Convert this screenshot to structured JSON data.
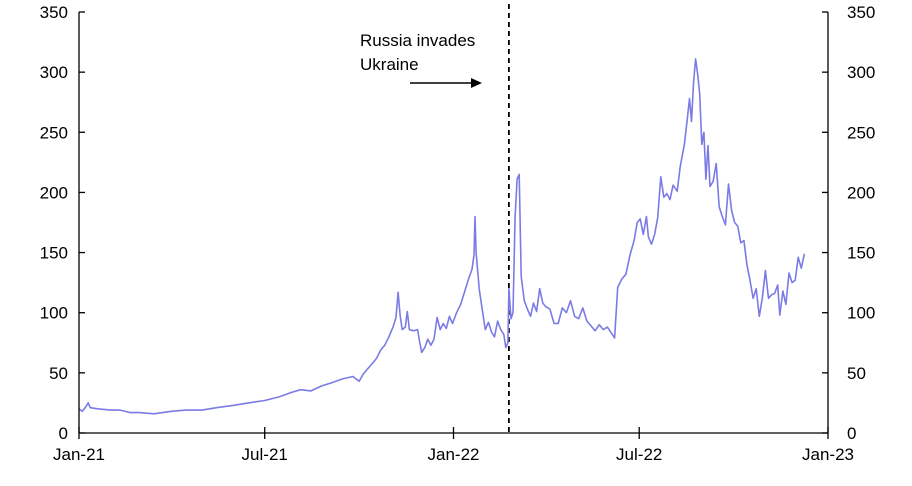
{
  "chart_data": {
    "type": "line",
    "title": "",
    "xlabel": "",
    "ylabel": "",
    "ylim": [
      0,
      350
    ],
    "yticks": [
      0,
      50,
      100,
      150,
      200,
      250,
      300,
      350
    ],
    "xlim": [
      "2021-01-01",
      "2023-01-01"
    ],
    "xticks": [
      {
        "date": "2021-01-01",
        "label": "Jan-21"
      },
      {
        "date": "2021-07-01",
        "label": "Jul-21"
      },
      {
        "date": "2022-01-01",
        "label": "Jan-22"
      },
      {
        "date": "2022-07-01",
        "label": "Jul-22"
      },
      {
        "date": "2023-01-01",
        "label": "Jan-23"
      }
    ],
    "grid": false,
    "legend": "none",
    "dual_axis": true,
    "series_color": "#7b7be6",
    "annotation": {
      "lines": [
        "Russia invades",
        "Ukraine"
      ],
      "event_date": "2022-02-24",
      "arrow": "right"
    },
    "series": [
      {
        "values": [
          [
            "2021-01-01",
            20
          ],
          [
            "2021-01-04",
            18
          ],
          [
            "2021-01-07",
            21
          ],
          [
            "2021-01-10",
            25
          ],
          [
            "2021-01-12",
            21
          ],
          [
            "2021-01-20",
            20
          ],
          [
            "2021-02-01",
            19
          ],
          [
            "2021-02-10",
            19
          ],
          [
            "2021-02-20",
            17
          ],
          [
            "2021-03-01",
            17
          ],
          [
            "2021-03-15",
            16
          ],
          [
            "2021-04-01",
            18
          ],
          [
            "2021-04-15",
            19
          ],
          [
            "2021-05-01",
            19
          ],
          [
            "2021-05-15",
            21
          ],
          [
            "2021-06-01",
            23
          ],
          [
            "2021-06-15",
            25
          ],
          [
            "2021-07-01",
            27
          ],
          [
            "2021-07-15",
            30
          ],
          [
            "2021-07-28",
            34
          ],
          [
            "2021-08-05",
            36
          ],
          [
            "2021-08-15",
            35
          ],
          [
            "2021-08-25",
            39
          ],
          [
            "2021-09-05",
            42
          ],
          [
            "2021-09-15",
            45
          ],
          [
            "2021-09-25",
            47
          ],
          [
            "2021-10-01",
            43
          ],
          [
            "2021-10-05",
            49
          ],
          [
            "2021-10-12",
            56
          ],
          [
            "2021-10-18",
            62
          ],
          [
            "2021-10-22",
            69
          ],
          [
            "2021-10-26",
            73
          ],
          [
            "2021-10-30",
            80
          ],
          [
            "2021-11-03",
            88
          ],
          [
            "2021-11-06",
            96
          ],
          [
            "2021-11-08",
            117
          ],
          [
            "2021-11-10",
            98
          ],
          [
            "2021-11-12",
            86
          ],
          [
            "2021-11-15",
            88
          ],
          [
            "2021-11-17",
            101
          ],
          [
            "2021-11-19",
            86
          ],
          [
            "2021-11-23",
            85
          ],
          [
            "2021-11-27",
            86
          ],
          [
            "2021-11-29",
            76
          ],
          [
            "2021-12-01",
            67
          ],
          [
            "2021-12-04",
            71
          ],
          [
            "2021-12-07",
            78
          ],
          [
            "2021-12-10",
            73
          ],
          [
            "2021-12-13",
            78
          ],
          [
            "2021-12-16",
            96
          ],
          [
            "2021-12-19",
            86
          ],
          [
            "2021-12-22",
            91
          ],
          [
            "2021-12-25",
            87
          ],
          [
            "2021-12-28",
            97
          ],
          [
            "2021-12-31",
            91
          ],
          [
            "2022-01-04",
            100
          ],
          [
            "2022-01-08",
            107
          ],
          [
            "2022-01-12",
            118
          ],
          [
            "2022-01-16",
            129
          ],
          [
            "2022-01-19",
            136
          ],
          [
            "2022-01-21",
            148
          ],
          [
            "2022-01-22",
            180
          ],
          [
            "2022-01-23",
            150
          ],
          [
            "2022-01-26",
            120
          ],
          [
            "2022-01-29",
            103
          ],
          [
            "2022-02-01",
            86
          ],
          [
            "2022-02-04",
            92
          ],
          [
            "2022-02-07",
            84
          ],
          [
            "2022-02-10",
            80
          ],
          [
            "2022-02-13",
            93
          ],
          [
            "2022-02-16",
            86
          ],
          [
            "2022-02-19",
            82
          ],
          [
            "2022-02-21",
            71
          ],
          [
            "2022-02-23",
            75
          ],
          [
            "2022-02-24",
            120
          ],
          [
            "2022-02-26",
            95
          ],
          [
            "2022-02-28",
            100
          ],
          [
            "2022-03-02",
            180
          ],
          [
            "2022-03-04",
            211
          ],
          [
            "2022-03-06",
            215
          ],
          [
            "2022-03-08",
            130
          ],
          [
            "2022-03-11",
            110
          ],
          [
            "2022-03-14",
            103
          ],
          [
            "2022-03-17",
            97
          ],
          [
            "2022-03-20",
            108
          ],
          [
            "2022-03-23",
            101
          ],
          [
            "2022-03-26",
            120
          ],
          [
            "2022-03-29",
            108
          ],
          [
            "2022-04-01",
            105
          ],
          [
            "2022-04-05",
            103
          ],
          [
            "2022-04-09",
            91
          ],
          [
            "2022-04-13",
            91
          ],
          [
            "2022-04-17",
            104
          ],
          [
            "2022-04-21",
            100
          ],
          [
            "2022-04-25",
            110
          ],
          [
            "2022-04-29",
            97
          ],
          [
            "2022-05-03",
            95
          ],
          [
            "2022-05-07",
            104
          ],
          [
            "2022-05-11",
            93
          ],
          [
            "2022-05-15",
            89
          ],
          [
            "2022-05-19",
            85
          ],
          [
            "2022-05-23",
            90
          ],
          [
            "2022-05-27",
            86
          ],
          [
            "2022-05-31",
            88
          ],
          [
            "2022-06-04",
            83
          ],
          [
            "2022-06-07",
            79
          ],
          [
            "2022-06-10",
            121
          ],
          [
            "2022-06-14",
            128
          ],
          [
            "2022-06-18",
            132
          ],
          [
            "2022-06-22",
            148
          ],
          [
            "2022-06-26",
            160
          ],
          [
            "2022-06-29",
            175
          ],
          [
            "2022-07-02",
            178
          ],
          [
            "2022-07-05",
            165
          ],
          [
            "2022-07-08",
            180
          ],
          [
            "2022-07-10",
            163
          ],
          [
            "2022-07-13",
            157
          ],
          [
            "2022-07-16",
            165
          ],
          [
            "2022-07-19",
            179
          ],
          [
            "2022-07-22",
            213
          ],
          [
            "2022-07-25",
            196
          ],
          [
            "2022-07-28",
            199
          ],
          [
            "2022-07-31",
            194
          ],
          [
            "2022-08-03",
            206
          ],
          [
            "2022-08-07",
            201
          ],
          [
            "2022-08-10",
            222
          ],
          [
            "2022-08-14",
            240
          ],
          [
            "2022-08-17",
            262
          ],
          [
            "2022-08-19",
            278
          ],
          [
            "2022-08-21",
            259
          ],
          [
            "2022-08-23",
            292
          ],
          [
            "2022-08-25",
            311
          ],
          [
            "2022-08-27",
            298
          ],
          [
            "2022-08-29",
            282
          ],
          [
            "2022-08-31",
            240
          ],
          [
            "2022-09-02",
            250
          ],
          [
            "2022-09-04",
            211
          ],
          [
            "2022-09-06",
            239
          ],
          [
            "2022-09-08",
            205
          ],
          [
            "2022-09-11",
            209
          ],
          [
            "2022-09-14",
            224
          ],
          [
            "2022-09-17",
            188
          ],
          [
            "2022-09-20",
            180
          ],
          [
            "2022-09-23",
            173
          ],
          [
            "2022-09-26",
            207
          ],
          [
            "2022-09-29",
            185
          ],
          [
            "2022-10-02",
            175
          ],
          [
            "2022-10-05",
            172
          ],
          [
            "2022-10-08",
            158
          ],
          [
            "2022-10-11",
            160
          ],
          [
            "2022-10-14",
            140
          ],
          [
            "2022-10-17",
            127
          ],
          [
            "2022-10-20",
            112
          ],
          [
            "2022-10-23",
            120
          ],
          [
            "2022-10-26",
            97
          ],
          [
            "2022-10-29",
            112
          ],
          [
            "2022-11-01",
            135
          ],
          [
            "2022-11-04",
            112
          ],
          [
            "2022-11-07",
            115
          ],
          [
            "2022-11-10",
            116
          ],
          [
            "2022-11-13",
            123
          ],
          [
            "2022-11-15",
            98
          ],
          [
            "2022-11-18",
            118
          ],
          [
            "2022-11-21",
            107
          ],
          [
            "2022-11-24",
            133
          ],
          [
            "2022-11-27",
            125
          ],
          [
            "2022-11-30",
            127
          ],
          [
            "2022-12-03",
            146
          ],
          [
            "2022-12-06",
            137
          ],
          [
            "2022-12-09",
            149
          ]
        ]
      }
    ]
  }
}
